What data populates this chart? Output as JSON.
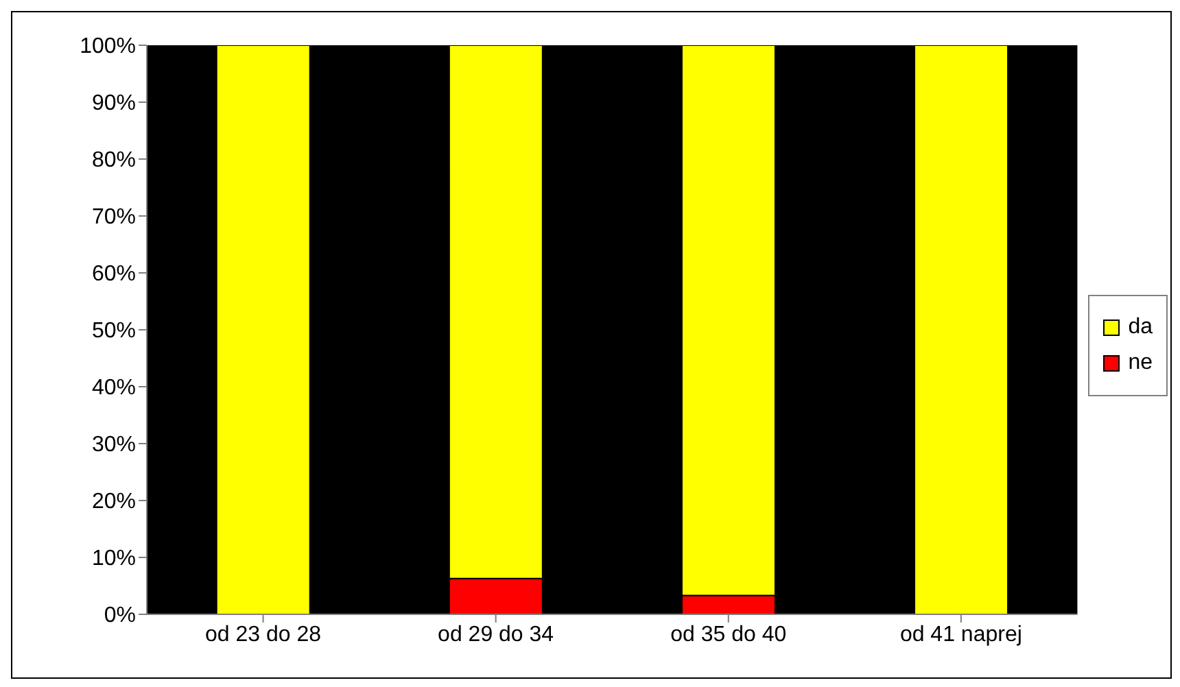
{
  "chart_data": {
    "type": "bar",
    "stacked": true,
    "categories": [
      "od 23 do 28",
      "od 29 do 34",
      "od 35 do 40",
      "od 41 naprej"
    ],
    "series": [
      {
        "name": "ne",
        "color": "#ff0000",
        "values": [
          0,
          6.3,
          3.3,
          0
        ]
      },
      {
        "name": "da",
        "color": "#ffff00",
        "values": [
          100,
          93.7,
          96.7,
          100
        ]
      }
    ],
    "ylim": [
      0,
      100
    ],
    "yticks": [
      {
        "value": 0,
        "label": "0%"
      },
      {
        "value": 10,
        "label": "10%"
      },
      {
        "value": 20,
        "label": "20%"
      },
      {
        "value": 30,
        "label": "30%"
      },
      {
        "value": 40,
        "label": "40%"
      },
      {
        "value": 50,
        "label": "50%"
      },
      {
        "value": 60,
        "label": "60%"
      },
      {
        "value": 70,
        "label": "70%"
      },
      {
        "value": 80,
        "label": "80%"
      },
      {
        "value": 90,
        "label": "90%"
      },
      {
        "value": 100,
        "label": "100%"
      }
    ],
    "grid": false,
    "legend": "right"
  }
}
